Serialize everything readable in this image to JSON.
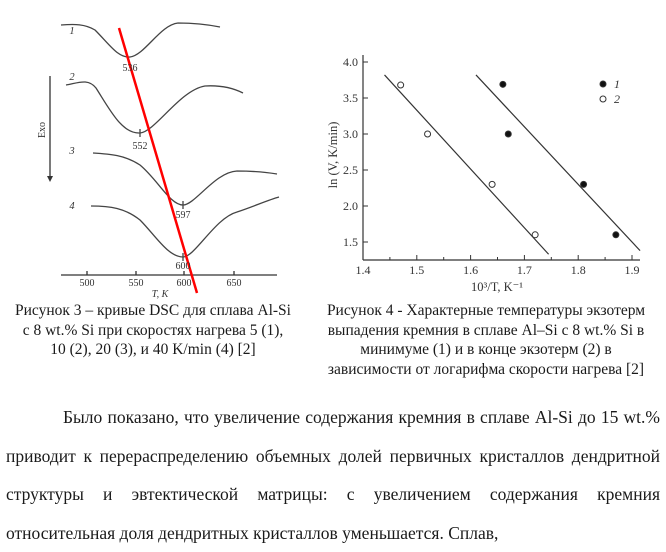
{
  "chart_data": [
    {
      "type": "line",
      "figure": "left",
      "xlabel": "T, K",
      "ylabel": "Exo",
      "x_ticks": [
        500,
        550,
        600,
        650
      ],
      "series": [
        {
          "name": "1",
          "peak": 536
        },
        {
          "name": "2",
          "peak": 552
        },
        {
          "name": "3",
          "peak": 597
        },
        {
          "name": "4",
          "peak": 600
        }
      ],
      "colors": {
        "curves": "#333333",
        "overlay_line": "#ff0000"
      }
    },
    {
      "type": "scatter",
      "figure": "right",
      "xlabel": "10³/T, K⁻¹",
      "ylabel": "ln (V, K/min)",
      "xlim": [
        1.4,
        1.92
      ],
      "ylim": [
        1.25,
        4.05
      ],
      "x_ticks": [
        "1.4",
        "1.5",
        "1.6",
        "1.7",
        "1.8",
        "1.9"
      ],
      "y_ticks": [
        "1.5",
        "2.0",
        "2.5",
        "3.0",
        "3.5",
        "4.0"
      ],
      "legend": "top-right",
      "series": [
        {
          "name": "1",
          "marker": "filled",
          "points": [
            [
              1.66,
              3.69
            ],
            [
              1.67,
              3.0
            ],
            [
              1.81,
              2.3
            ],
            [
              1.87,
              1.6
            ]
          ],
          "fit": [
            [
              1.61,
              3.82
            ],
            [
              1.915,
              1.38
            ]
          ]
        },
        {
          "name": "2",
          "marker": "open",
          "points": [
            [
              1.47,
              3.68
            ],
            [
              1.52,
              3.0
            ],
            [
              1.64,
              2.3
            ],
            [
              1.72,
              1.6
            ]
          ],
          "fit": [
            [
              1.44,
              3.82
            ],
            [
              1.745,
              1.33
            ]
          ]
        }
      ]
    }
  ],
  "captions": {
    "fig3": [
      "Рисунок 3 – кривые DSC для сплава Al-Si",
      "с 8 wt.% Si при скоростях нагрева 5 (1),",
      "10 (2), 20 (3), и 40 K/min (4) [2]"
    ],
    "fig4": [
      "Рисунок 4 - Характерные температуры экзотерм",
      "выпадения кремния в сплаве Al–Si с 8 wt.% Si в",
      "минимуме (1) и в конце экзотерм (2) в",
      "зависимости от логарифма скорости нагрева [2]"
    ]
  },
  "paragraph": "Было показано, что увеличение содержания кремния в сплаве Al-Si до 15 wt.% приводит к перераспределению объемных долей первичных кристаллов дендритной структуры и эвтектической матрицы: с увеличением содержания кремния относительная доля дендритных кристаллов уменьшается. Сплав,"
}
